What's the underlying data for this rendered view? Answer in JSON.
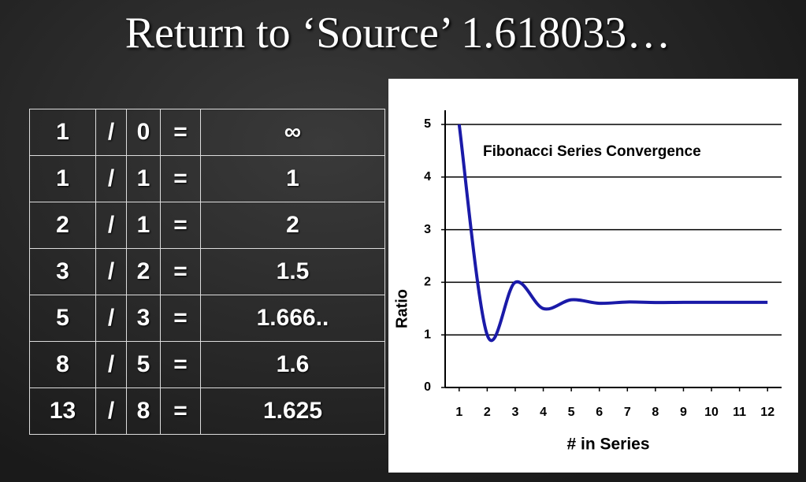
{
  "title": "Return to ‘Source’ 1.618033…",
  "table": {
    "rows": [
      [
        "1",
        "/",
        "0",
        "=",
        "∞"
      ],
      [
        "1",
        "/",
        "1",
        "=",
        "1"
      ],
      [
        "2",
        "/",
        "1",
        "=",
        "2"
      ],
      [
        "3",
        "/",
        "2",
        "=",
        "1.5"
      ],
      [
        "5",
        "/",
        "3",
        "=",
        "1.666.."
      ],
      [
        "8",
        "/",
        "5",
        "=",
        "1.6"
      ],
      [
        "13",
        "/",
        "8",
        "=",
        "1.625"
      ]
    ]
  },
  "chart_data": {
    "type": "line",
    "title": "Fibonacci Series Convergence",
    "x_label": "# in Series",
    "y_label": "Ratio",
    "x": [
      1,
      2,
      3,
      4,
      5,
      6,
      7,
      8,
      9,
      10,
      11,
      12
    ],
    "values": [
      5,
      1,
      2,
      1.5,
      1.667,
      1.6,
      1.625,
      1.615,
      1.619,
      1.618,
      1.618,
      1.618
    ],
    "color": "#1a1aa8",
    "xlim": [
      0.5,
      12.5
    ],
    "xticks": [
      1,
      2,
      3,
      4,
      5,
      6,
      7,
      8,
      9,
      10,
      11,
      12
    ],
    "ylim": [
      0,
      5
    ],
    "yticks": [
      0,
      1,
      2,
      3,
      4,
      5
    ],
    "grid": true,
    "smooth": true
  }
}
